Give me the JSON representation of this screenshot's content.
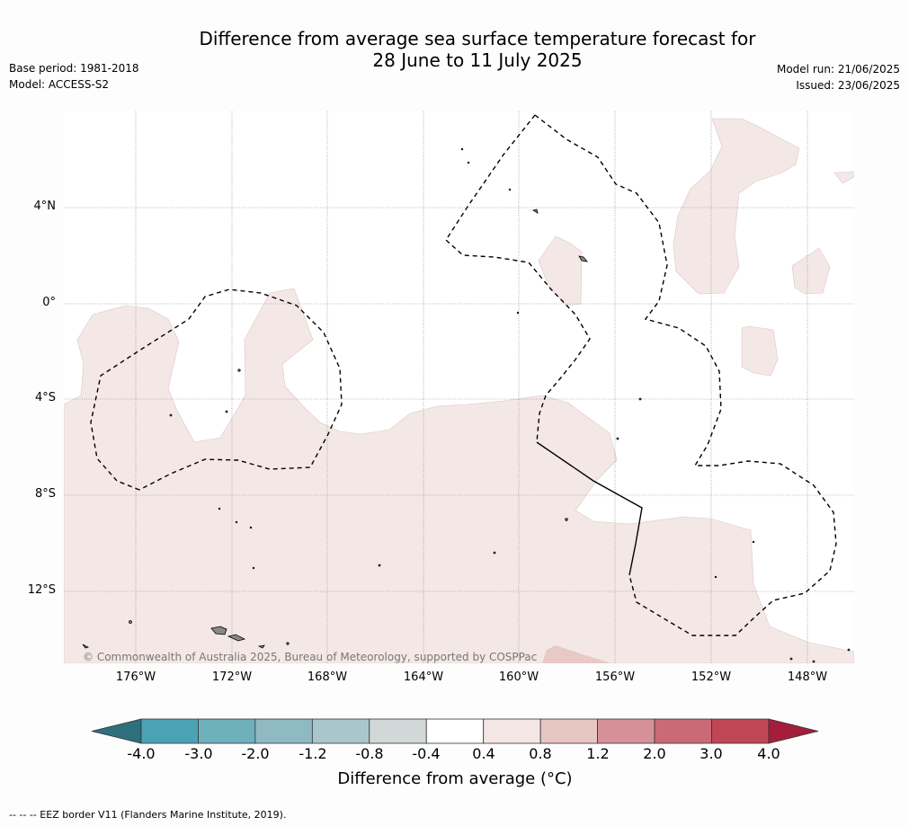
{
  "title_line1": "Difference from average sea surface temperature forecast for",
  "title_line2": "28 June to 11 July 2025",
  "meta_left": {
    "base_period": "Base period: 1981-2018",
    "model": "Model: ACCESS-S2"
  },
  "meta_right": {
    "model_run": "Model run: 21/06/2025",
    "issued": "Issued: 23/06/2025"
  },
  "lat_labels": [
    "4°N",
    "0°",
    "4°S",
    "8°S",
    "12°S"
  ],
  "lon_labels": [
    "176°W",
    "172°W",
    "168°W",
    "164°W",
    "160°W",
    "156°W",
    "152°W",
    "148°W"
  ],
  "copyright": "© Commonwealth of Australia 2025, Bureau of Meteorology, supported by COSPPac",
  "colorbar": {
    "title": "Difference from average (°C)",
    "labels": [
      "-4.0",
      "-3.0",
      "-2.0",
      "-1.2",
      "-0.8",
      "-0.4",
      "0.4",
      "0.8",
      "1.2",
      "2.0",
      "3.0",
      "4.0"
    ],
    "colors": [
      "#2d6f7c",
      "#4aa3b4",
      "#6fb0bd",
      "#8fbac4",
      "#a9c6cc",
      "#d2d8d8",
      "#ffffff",
      "#f4e6e5",
      "#e7c5c1",
      "#d69198",
      "#cb6a77",
      "#c04656",
      "#a51d3c"
    ]
  },
  "footer_note": "--  --  -- EEZ border V11 (Flanders Marine Institute, 2019)."
}
